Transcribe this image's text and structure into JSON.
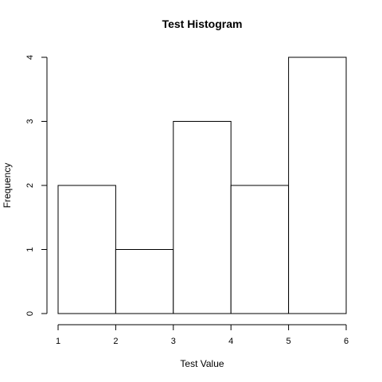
{
  "chart_data": {
    "type": "bar",
    "title": "Test Histogram",
    "xlabel": "Test Value",
    "ylabel": "Frequency",
    "bins": [
      {
        "start": 1,
        "end": 2,
        "count": 2
      },
      {
        "start": 2,
        "end": 3,
        "count": 1
      },
      {
        "start": 3,
        "end": 4,
        "count": 3
      },
      {
        "start": 4,
        "end": 5,
        "count": 2
      },
      {
        "start": 5,
        "end": 6,
        "count": 4
      }
    ],
    "xlim": [
      1,
      6
    ],
    "ylim": [
      0,
      4
    ],
    "x_ticks": [
      "1",
      "2",
      "3",
      "4",
      "5",
      "6"
    ],
    "y_ticks": [
      "0",
      "1",
      "2",
      "3",
      "4"
    ],
    "grid": false,
    "legend": "none",
    "colors": {
      "bar_fill": "#ffffff",
      "bar_stroke": "#000000"
    }
  }
}
